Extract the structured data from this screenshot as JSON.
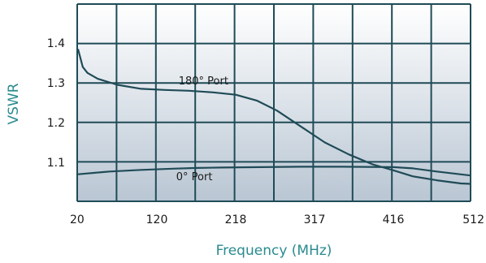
{
  "chart_data": {
    "type": "line",
    "xlabel": "Frequency (MHz)",
    "ylabel": "VSWR",
    "x_ticks": [
      "20",
      "120",
      "218",
      "317",
      "416",
      "512"
    ],
    "y_ticks": [
      "1.1",
      "1.2",
      "1.3",
      "1.4"
    ],
    "xlim": [
      20,
      512
    ],
    "ylim": [
      1.03,
      1.5
    ],
    "grid": true,
    "colors": {
      "line": "#1f4b57",
      "grid": "#1f4b57",
      "accent_text": "#2a8a8f",
      "plot_top": "#ffffff",
      "plot_bottom": "#b9c6d3"
    },
    "series": [
      {
        "name": "",
        "x": [
          20,
          26,
          32,
          45,
          70,
          100,
          130,
          160,
          190,
          218,
          245,
          270,
          300,
          330,
          360,
          390,
          416,
          440,
          470,
          500,
          512
        ],
        "y": [
          1.385,
          1.34,
          1.325,
          1.31,
          1.295,
          1.285,
          1.282,
          1.28,
          1.276,
          1.27,
          1.255,
          1.23,
          1.19,
          1.15,
          1.12,
          1.095,
          1.08,
          1.065,
          1.055,
          1.047,
          1.046
        ]
      },
      {
        "name": "",
        "x": [
          20,
          60,
          100,
          140,
          170,
          200,
          250,
          300,
          350,
          416,
          440,
          470,
          512
        ],
        "y": [
          1.07,
          1.077,
          1.081,
          1.084,
          1.086,
          1.087,
          1.088,
          1.089,
          1.089,
          1.088,
          1.085,
          1.077,
          1.067
        ]
      }
    ],
    "annotations": [
      {
        "text": "180°  Port",
        "x": 147,
        "y": 1.296
      },
      {
        "text": "0°  Port",
        "x": 144,
        "y": 1.055
      }
    ]
  }
}
